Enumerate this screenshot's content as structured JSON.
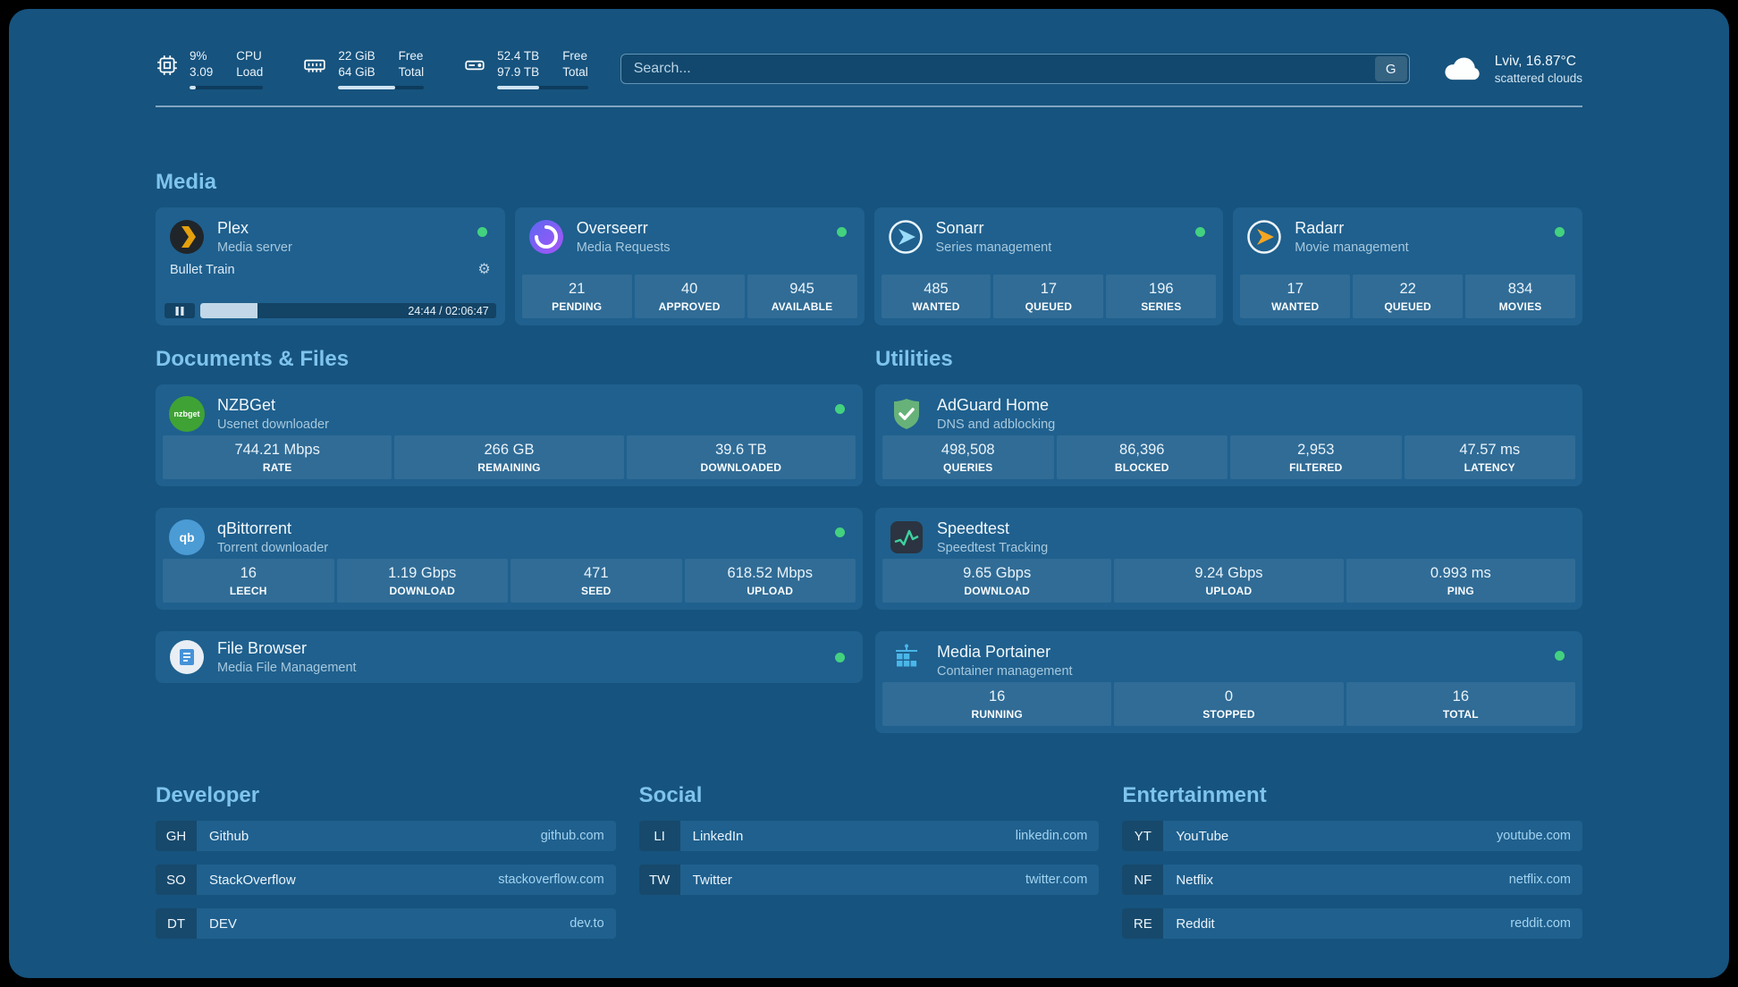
{
  "topbar": {
    "cpu": {
      "value_primary": "9%",
      "value_secondary": "3.09",
      "label_primary": "CPU",
      "label_secondary": "Load",
      "fill": "9%"
    },
    "memory": {
      "value_primary": "22 GiB",
      "value_secondary": "64 GiB",
      "label_primary": "Free",
      "label_secondary": "Total",
      "fill": "66%"
    },
    "disk": {
      "value_primary": "52.4 TB",
      "value_secondary": "97.9 TB",
      "label_primary": "Free",
      "label_secondary": "Total",
      "fill": "46%"
    },
    "search": {
      "placeholder": "Search...",
      "hotkey": "G"
    },
    "weather": {
      "location": "Lviv, 16.87°C",
      "condition": "scattered clouds"
    }
  },
  "media": {
    "heading": "Media",
    "plex": {
      "name": "Plex",
      "subtitle": "Media server",
      "now_playing": "Bullet Train",
      "elapsed": "24:44 / 02:06:47",
      "progress": "19.5%"
    },
    "overseerr": {
      "name": "Overseerr",
      "subtitle": "Media Requests",
      "stats": [
        {
          "value": "21",
          "label": "PENDING"
        },
        {
          "value": "40",
          "label": "APPROVED"
        },
        {
          "value": "945",
          "label": "AVAILABLE"
        }
      ]
    },
    "sonarr": {
      "name": "Sonarr",
      "subtitle": "Series management",
      "stats": [
        {
          "value": "485",
          "label": "WANTED"
        },
        {
          "value": "17",
          "label": "QUEUED"
        },
        {
          "value": "196",
          "label": "SERIES"
        }
      ]
    },
    "radarr": {
      "name": "Radarr",
      "subtitle": "Movie management",
      "stats": [
        {
          "value": "17",
          "label": "WANTED"
        },
        {
          "value": "22",
          "label": "QUEUED"
        },
        {
          "value": "834",
          "label": "MOVIES"
        }
      ]
    }
  },
  "documents": {
    "heading": "Documents & Files",
    "nzbget": {
      "name": "NZBGet",
      "subtitle": "Usenet downloader",
      "icon_text": "nzbget",
      "stats": [
        {
          "value": "744.21 Mbps",
          "label": "RATE"
        },
        {
          "value": "266 GB",
          "label": "REMAINING"
        },
        {
          "value": "39.6 TB",
          "label": "DOWNLOADED"
        }
      ]
    },
    "qbittorrent": {
      "name": "qBittorrent",
      "subtitle": "Torrent downloader",
      "icon_text": "qb",
      "stats": [
        {
          "value": "16",
          "label": "LEECH"
        },
        {
          "value": "1.19 Gbps",
          "label": "DOWNLOAD"
        },
        {
          "value": "471",
          "label": "SEED"
        },
        {
          "value": "618.52 Mbps",
          "label": "UPLOAD"
        }
      ]
    },
    "filebrowser": {
      "name": "File Browser",
      "subtitle": "Media File Management"
    }
  },
  "utilities": {
    "heading": "Utilities",
    "adguard": {
      "name": "AdGuard Home",
      "subtitle": "DNS and adblocking",
      "stats": [
        {
          "value": "498,508",
          "label": "QUERIES"
        },
        {
          "value": "86,396",
          "label": "BLOCKED"
        },
        {
          "value": "2,953",
          "label": "FILTERED"
        },
        {
          "value": "47.57 ms",
          "label": "LATENCY"
        }
      ]
    },
    "speedtest": {
      "name": "Speedtest",
      "subtitle": "Speedtest Tracking",
      "stats": [
        {
          "value": "9.65 Gbps",
          "label": "DOWNLOAD"
        },
        {
          "value": "9.24 Gbps",
          "label": "UPLOAD"
        },
        {
          "value": "0.993 ms",
          "label": "PING"
        }
      ]
    },
    "portainer": {
      "name": "Media Portainer",
      "subtitle": "Container management",
      "stats": [
        {
          "value": "16",
          "label": "RUNNING"
        },
        {
          "value": "0",
          "label": "STOPPED"
        },
        {
          "value": "16",
          "label": "TOTAL"
        }
      ]
    }
  },
  "bookmarks": {
    "developer": {
      "heading": "Developer",
      "items": [
        {
          "abbr": "GH",
          "name": "Github",
          "url": "github.com"
        },
        {
          "abbr": "SO",
          "name": "StackOverflow",
          "url": "stackoverflow.com"
        },
        {
          "abbr": "DT",
          "name": "DEV",
          "url": "dev.to"
        }
      ]
    },
    "social": {
      "heading": "Social",
      "items": [
        {
          "abbr": "LI",
          "name": "LinkedIn",
          "url": "linkedin.com"
        },
        {
          "abbr": "TW",
          "name": "Twitter",
          "url": "twitter.com"
        }
      ]
    },
    "entertainment": {
      "heading": "Entertainment",
      "items": [
        {
          "abbr": "YT",
          "name": "YouTube",
          "url": "youtube.com"
        },
        {
          "abbr": "NF",
          "name": "Netflix",
          "url": "netflix.com"
        },
        {
          "abbr": "RE",
          "name": "Reddit",
          "url": "reddit.com"
        }
      ]
    }
  },
  "colors": {
    "status_online": "#43d17f",
    "heading": "#7ec4ed",
    "plex_amber": "#e5a00d"
  }
}
